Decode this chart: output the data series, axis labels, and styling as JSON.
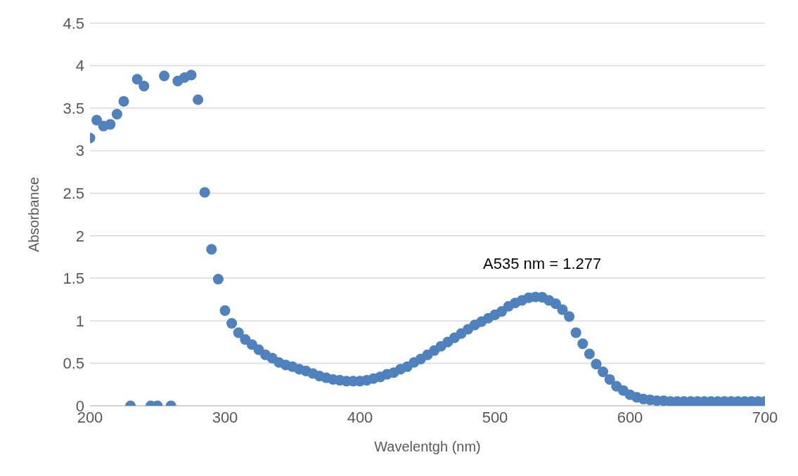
{
  "chart_data": {
    "type": "scatter",
    "xlabel": "Wavelentgh (nm)",
    "ylabel": "Absorbance",
    "annotations": [
      {
        "text": "A535 nm = 1.277",
        "x": 535,
        "y": 1.277
      }
    ],
    "x": [
      200,
      205,
      210,
      215,
      220,
      225,
      230,
      235,
      240,
      245,
      250,
      255,
      260,
      265,
      270,
      275,
      280,
      285,
      290,
      295,
      300,
      305,
      310,
      315,
      320,
      325,
      330,
      335,
      340,
      345,
      350,
      355,
      360,
      365,
      370,
      375,
      380,
      385,
      390,
      395,
      400,
      405,
      410,
      415,
      420,
      425,
      430,
      435,
      440,
      445,
      450,
      455,
      460,
      465,
      470,
      475,
      480,
      485,
      490,
      495,
      500,
      505,
      510,
      515,
      520,
      525,
      530,
      535,
      540,
      545,
      550,
      555,
      560,
      565,
      570,
      575,
      580,
      585,
      590,
      595,
      600,
      605,
      610,
      615,
      620,
      625,
      630,
      635,
      640,
      645,
      650,
      655,
      660,
      665,
      670,
      675,
      680,
      685,
      690,
      695,
      700
    ],
    "series": [
      {
        "color": "#4f81bd",
        "values": [
          3.15,
          3.36,
          3.29,
          3.31,
          3.43,
          3.58,
          0,
          3.84,
          3.76,
          0,
          0,
          3.88,
          0,
          3.82,
          3.86,
          3.89,
          3.6,
          2.51,
          1.84,
          1.49,
          1.12,
          0.97,
          0.86,
          0.78,
          0.72,
          0.66,
          0.6,
          0.56,
          0.51,
          0.48,
          0.46,
          0.43,
          0.41,
          0.38,
          0.35,
          0.33,
          0.31,
          0.3,
          0.29,
          0.29,
          0.29,
          0.3,
          0.32,
          0.34,
          0.37,
          0.39,
          0.43,
          0.46,
          0.51,
          0.55,
          0.6,
          0.65,
          0.7,
          0.75,
          0.8,
          0.85,
          0.9,
          0.95,
          0.99,
          1.03,
          1.07,
          1.11,
          1.17,
          1.21,
          1.24,
          1.27,
          1.28,
          1.277,
          1.24,
          1.2,
          1.13,
          1.05,
          0.86,
          0.73,
          0.61,
          0.49,
          0.4,
          0.31,
          0.23,
          0.18,
          0.13,
          0.1,
          0.08,
          0.07,
          0.06,
          0.06,
          0.05,
          0.05,
          0.05,
          0.05,
          0.05,
          0.05,
          0.05,
          0.05,
          0.05,
          0.05,
          0.05,
          0.05,
          0.05,
          0.05,
          0.05
        ]
      }
    ],
    "xlim": [
      200,
      700
    ],
    "xticks": [
      200,
      300,
      400,
      500,
      600,
      700
    ],
    "ylim": [
      0,
      4.5
    ],
    "yticks": [
      0,
      0.5,
      1,
      1.5,
      2,
      2.5,
      3,
      3.5,
      4,
      4.5
    ],
    "grid": "y",
    "marker": "circle"
  }
}
